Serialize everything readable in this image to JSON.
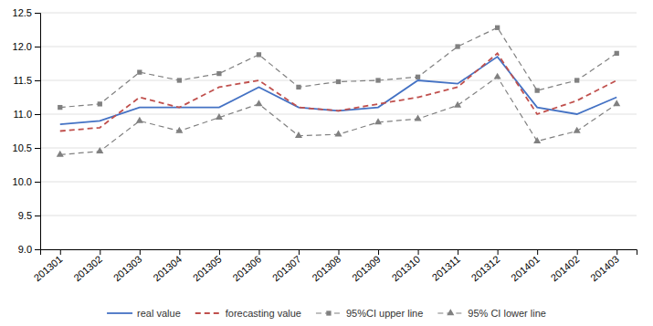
{
  "chart_data": {
    "type": "line",
    "categories": [
      "201301",
      "201302",
      "201303",
      "201304",
      "201305",
      "201306",
      "201307",
      "201308",
      "201309",
      "201310",
      "201311",
      "201312",
      "201401",
      "201402",
      "201403"
    ],
    "series": [
      {
        "name": "real value",
        "color": "#4472C4",
        "line_style": "solid",
        "values": [
          10.85,
          10.9,
          11.1,
          11.1,
          11.1,
          11.4,
          11.1,
          11.05,
          11.1,
          11.5,
          11.45,
          11.85,
          11.1,
          11.0,
          11.25
        ]
      },
      {
        "name": "forecasting value",
        "color": "#C0504D",
        "line_style": "dashed",
        "values": [
          10.75,
          10.8,
          11.25,
          11.1,
          11.4,
          11.5,
          11.1,
          11.05,
          11.15,
          11.25,
          11.4,
          11.9,
          11.0,
          11.2,
          11.5
        ]
      },
      {
        "name": "95%CI upper line",
        "color": "#808080",
        "line_style": "dashed",
        "marker": "square",
        "values": [
          11.1,
          11.15,
          11.62,
          11.5,
          11.6,
          11.88,
          11.4,
          11.48,
          11.5,
          11.55,
          12.0,
          12.28,
          11.35,
          11.5,
          11.9
        ]
      },
      {
        "name": "95% CI lower line",
        "color": "#808080",
        "line_style": "dashed",
        "marker": "triangle",
        "values": [
          10.4,
          10.45,
          10.9,
          10.75,
          10.95,
          11.15,
          10.68,
          10.7,
          10.88,
          10.93,
          11.13,
          11.55,
          10.6,
          10.75,
          11.15
        ]
      }
    ],
    "ylim": [
      9,
      12.5
    ],
    "yticks": [
      {
        "value": 9,
        "label": "9.0"
      },
      9.5,
      {
        "value": 10,
        "label": "10.0"
      },
      10.5,
      {
        "value": 11,
        "label": "11.0"
      },
      11.5,
      {
        "value": 12,
        "label": "12.0"
      },
      12.5
    ],
    "grid": true,
    "legend": "bottom"
  }
}
